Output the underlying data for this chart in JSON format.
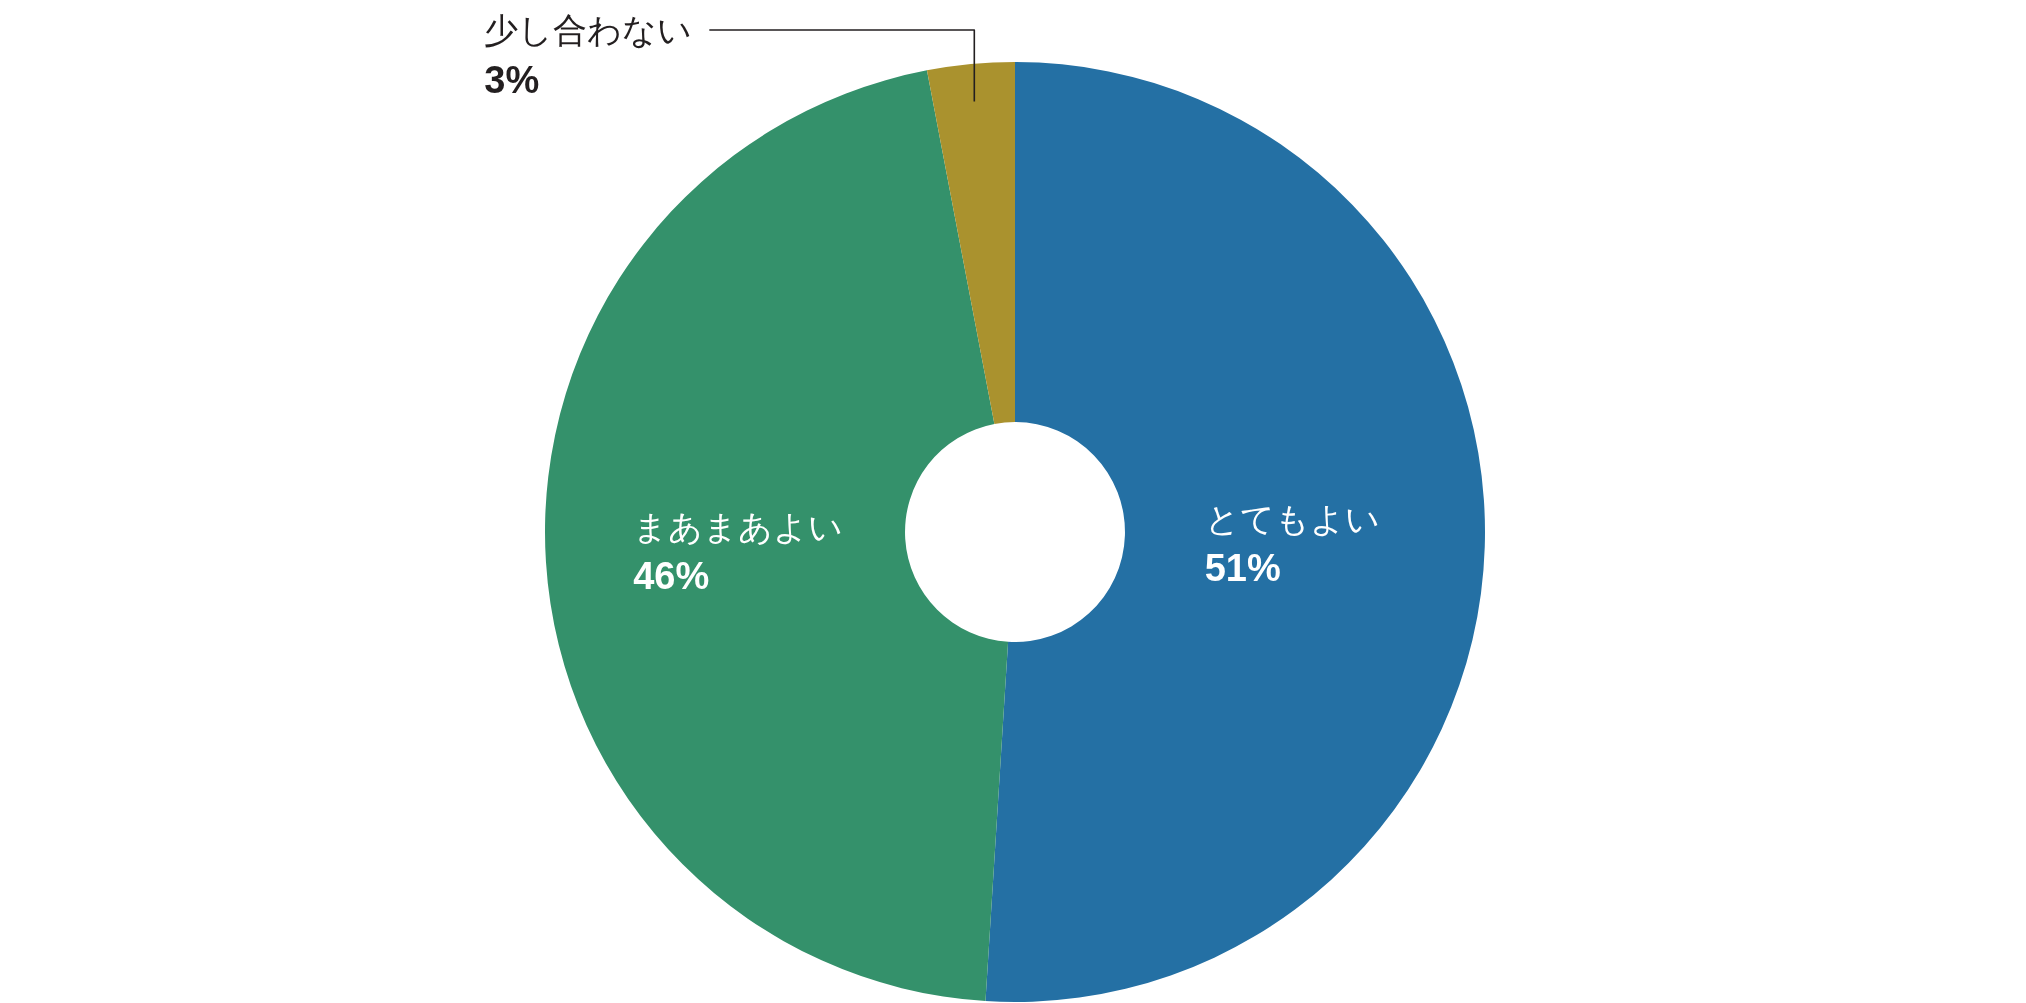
{
  "chart_data": {
    "type": "donut",
    "categories": [
      "とてもよい",
      "まあまあよい",
      "少し合わない"
    ],
    "values": [
      51,
      46,
      3
    ],
    "colors": [
      "#2470a4",
      "#34916b",
      "#aa922e"
    ],
    "value_labels": [
      "51%",
      "46%",
      "3%"
    ]
  }
}
